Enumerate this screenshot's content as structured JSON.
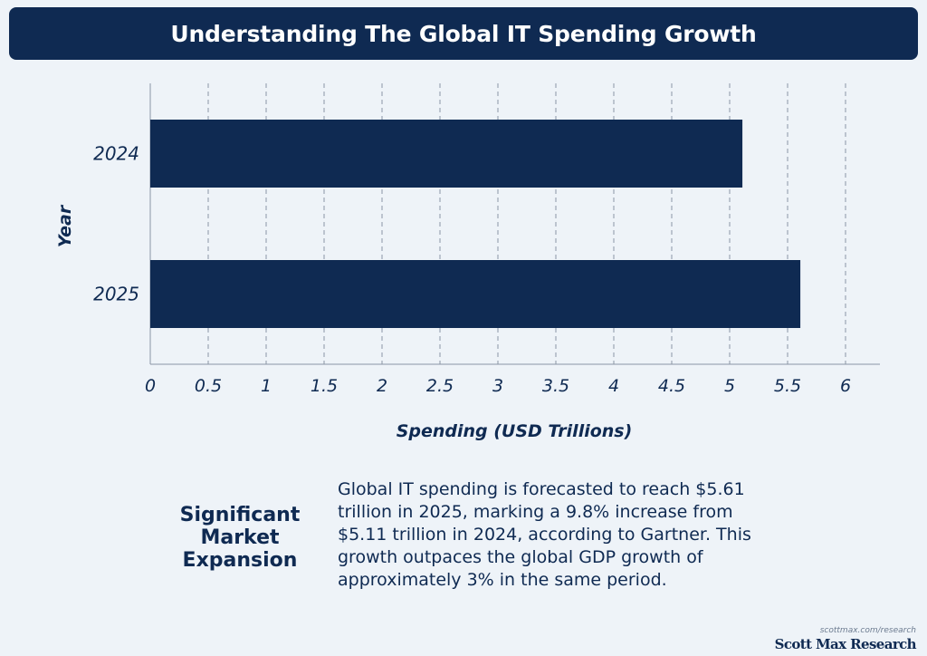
{
  "title": "Understanding The Global IT Spending Growth",
  "chart_data": {
    "type": "bar",
    "orientation": "horizontal",
    "categories": [
      "2024",
      "2025"
    ],
    "values": [
      5.11,
      5.61
    ],
    "xlabel": "Spending (USD Trillions)",
    "ylabel": "Year",
    "xlim": [
      0,
      6
    ],
    "xticks": [
      "0",
      "0.5",
      "1",
      "1.5",
      "2",
      "2.5",
      "3",
      "3.5",
      "4",
      "4.5",
      "5",
      "5.5",
      "6"
    ],
    "grid": "vertical dashed",
    "bar_color": "#0f2a52"
  },
  "insight": {
    "heading": "Significant Market Expansion",
    "text": "Global IT spending is forecasted to reach $5.61 trillion in 2025, marking a 9.8% increase from $5.11 trillion in 2024, according to Gartner. This growth outpaces the global GDP growth of approximately 3% in the same period."
  },
  "footer": {
    "url": "scottmax.com/research",
    "brand": "Scott Max Research"
  }
}
